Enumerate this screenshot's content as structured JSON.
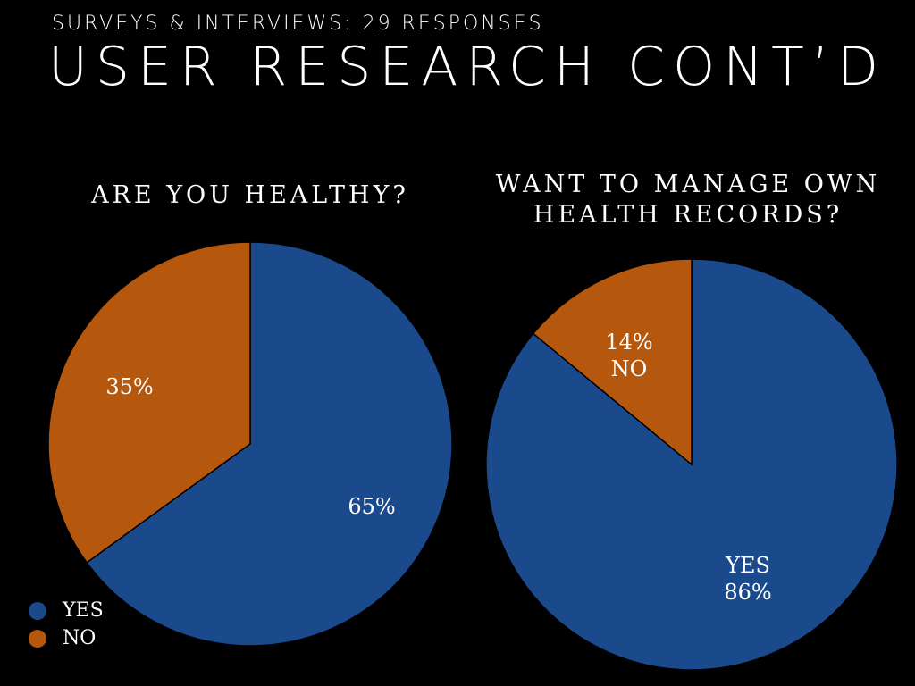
{
  "slide": {
    "subtitle": "SURVEYS & INTERVIEWS: 29 RESPONSES",
    "title": "USER RESEARCH CONT’D"
  },
  "colors": {
    "yes": "#1a4a8c",
    "no": "#b5570d",
    "stroke": "#000000"
  },
  "legend": [
    {
      "label": "YES",
      "color": "#1a4a8c"
    },
    {
      "label": "NO",
      "color": "#b5570d"
    }
  ],
  "chart_data": [
    {
      "type": "pie",
      "title": "ARE YOU HEALTHY?",
      "slices": [
        {
          "name": "YES",
          "value": 65,
          "label": "65%"
        },
        {
          "name": "NO",
          "value": 35,
          "label": "35%"
        }
      ]
    },
    {
      "type": "pie",
      "title": "WANT TO MANAGE OWN HEALTH RECORDS?",
      "title_lines": [
        "WANT TO MANAGE OWN",
        "HEALTH RECORDS?"
      ],
      "slices": [
        {
          "name": "YES",
          "value": 86,
          "label_lines": [
            "YES",
            "86%"
          ]
        },
        {
          "name": "NO",
          "value": 14,
          "label_lines": [
            "14%",
            "NO"
          ]
        }
      ]
    }
  ]
}
